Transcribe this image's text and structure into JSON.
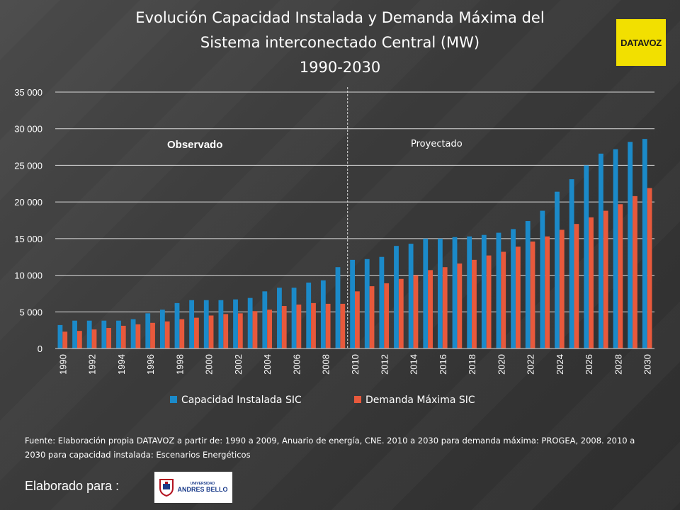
{
  "title_lines": [
    "Evolución Capacidad Instalada y Demanda Máxima del",
    "Sistema interconectado Central (MW)",
    "1990-2030"
  ],
  "logo_text": "DATAVOZ",
  "source_note": "Fuente: Elaboración propia DATAVOZ a partir de: 1990 a 2009, Anuario de energía, CNE. 2010 a 2030 para demanda máxima: PROGEA, 2008. 2010 a 2030 para capacidad instalada: Escenarios Energéticos",
  "elaborado_label": "Elaborado para :",
  "university_logo": {
    "line1": "UNIVERSIDAD",
    "line2": "ANDRES BELLO"
  },
  "colors": {
    "capacidad": "#1b8ac9",
    "demanda": "#e8593c",
    "grid": "#d9d9d9",
    "divider": "#d9d9d9"
  },
  "chart_data": {
    "type": "bar",
    "title": "Evolución Capacidad Instalada y Demanda Máxima del Sistema interconectado Central (MW) 1990-2030",
    "xlabel": "",
    "ylabel": "",
    "ylim": [
      0,
      35000
    ],
    "yticks": [
      0,
      5000,
      10000,
      15000,
      20000,
      25000,
      30000,
      35000
    ],
    "ytick_labels": [
      "0",
      "5 000",
      "10 000",
      "15 000",
      "20 000",
      "25 000",
      "30 000",
      "35 000"
    ],
    "categories": [
      1990,
      1991,
      1992,
      1993,
      1994,
      1995,
      1996,
      1997,
      1998,
      1999,
      2000,
      2001,
      2002,
      2003,
      2004,
      2005,
      2006,
      2007,
      2008,
      2009,
      2010,
      2011,
      2012,
      2013,
      2014,
      2015,
      2016,
      2017,
      2018,
      2019,
      2020,
      2021,
      2022,
      2023,
      2024,
      2025,
      2026,
      2027,
      2028,
      2029,
      2030
    ],
    "xtick_labels": [
      "1990",
      "1992",
      "1994",
      "1996",
      "1998",
      "2000",
      "2002",
      "2004",
      "2006",
      "2008",
      "2010",
      "2012",
      "2014",
      "2016",
      "2018",
      "2020",
      "2022",
      "2024",
      "2026",
      "2028",
      "2030"
    ],
    "series": [
      {
        "name": "Capacidad Instalada SIC",
        "values": [
          3200,
          3800,
          3800,
          3800,
          3800,
          4000,
          4800,
          5300,
          6200,
          6600,
          6600,
          6600,
          6700,
          6900,
          7800,
          8300,
          8300,
          9000,
          9300,
          11100,
          12100,
          12200,
          12500,
          14000,
          14300,
          15000,
          15000,
          15200,
          15300,
          15500,
          15800,
          16300,
          17400,
          18800,
          21400,
          23100,
          25000,
          26600,
          27200,
          28200,
          28600
        ]
      },
      {
        "name": "Demanda Máxima SIC",
        "values": [
          2300,
          2400,
          2600,
          2800,
          3100,
          3300,
          3500,
          3700,
          4000,
          4200,
          4500,
          4700,
          4800,
          5100,
          5300,
          5800,
          6000,
          6200,
          6100,
          6100,
          7800,
          8500,
          8900,
          9500,
          10000,
          10700,
          11100,
          11600,
          12100,
          12700,
          13200,
          13900,
          14600,
          15300,
          16200,
          17000,
          17900,
          18800,
          19700,
          20800,
          21900
        ]
      }
    ],
    "annotations": [
      "Observado",
      "Proyectado"
    ],
    "legend": "bottom"
  }
}
